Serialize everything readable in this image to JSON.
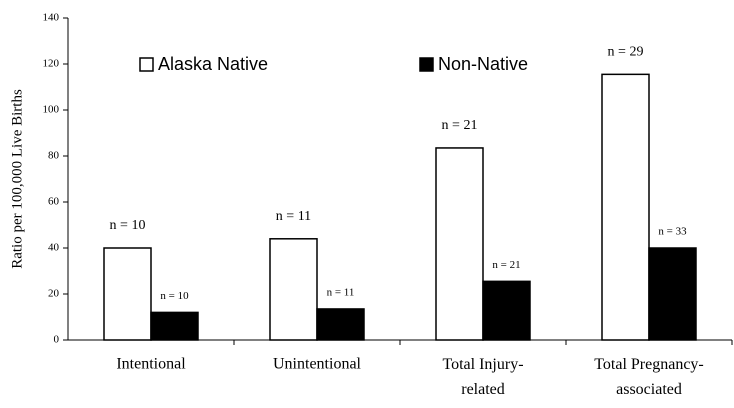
{
  "chart_data": {
    "type": "bar",
    "y_label": "Ratio per 100,000 Live Births",
    "categories": [
      "Intentional",
      "Unintentional",
      "Total Injury-related",
      "Total Pregnancy-associated"
    ],
    "series": [
      {
        "name": "Alaska Native",
        "color": "#ffffff",
        "values": [
          40,
          44,
          83.5,
          115.5
        ],
        "annotations": [
          "n = 10",
          "n = 11",
          "n = 21",
          "n = 29"
        ]
      },
      {
        "name": "Non-Native",
        "color": "#000000",
        "values": [
          12,
          13.5,
          25.5,
          40
        ],
        "annotations": [
          "n = 10",
          "n = 11",
          "n = 21",
          "n = 33"
        ]
      }
    ],
    "ylim": [
      0,
      140
    ],
    "yticks": [
      0,
      20,
      40,
      60,
      80,
      100,
      120,
      140
    ],
    "legend": "top"
  }
}
